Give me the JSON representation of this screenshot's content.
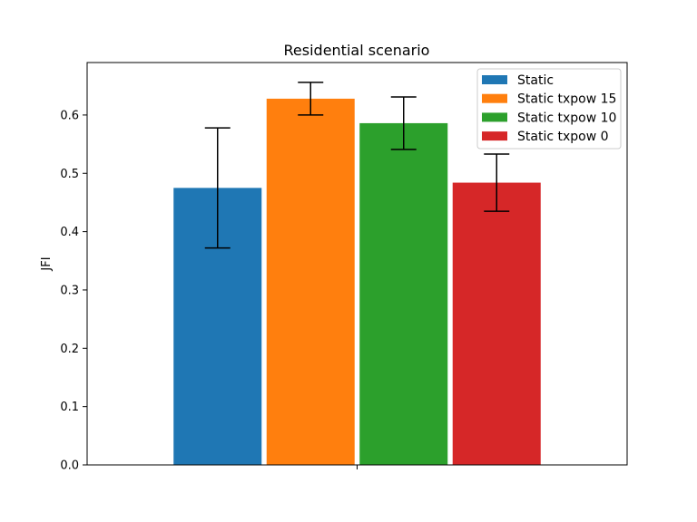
{
  "chart_data": {
    "type": "bar",
    "title": "Residential scenario",
    "xlabel": "",
    "ylabel": "JFI",
    "ylim": [
      0,
      0.69
    ],
    "yticks": [
      "0.0",
      "0.1",
      "0.2",
      "0.3",
      "0.4",
      "0.5",
      "0.6"
    ],
    "grid": false,
    "legend_position": "top-right",
    "categories": [
      ""
    ],
    "series": [
      {
        "name": "Static",
        "values": [
          0.475
        ],
        "error": [
          0.103
        ],
        "color": "#1f77b4"
      },
      {
        "name": "Static txpow 15",
        "values": [
          0.628
        ],
        "error": [
          0.028
        ],
        "color": "#ff7f0e"
      },
      {
        "name": "Static txpow 10",
        "values": [
          0.586
        ],
        "error": [
          0.045
        ],
        "color": "#2ca02c"
      },
      {
        "name": "Static txpow 0",
        "values": [
          0.484
        ],
        "error": [
          0.049
        ],
        "color": "#d62728"
      }
    ]
  }
}
